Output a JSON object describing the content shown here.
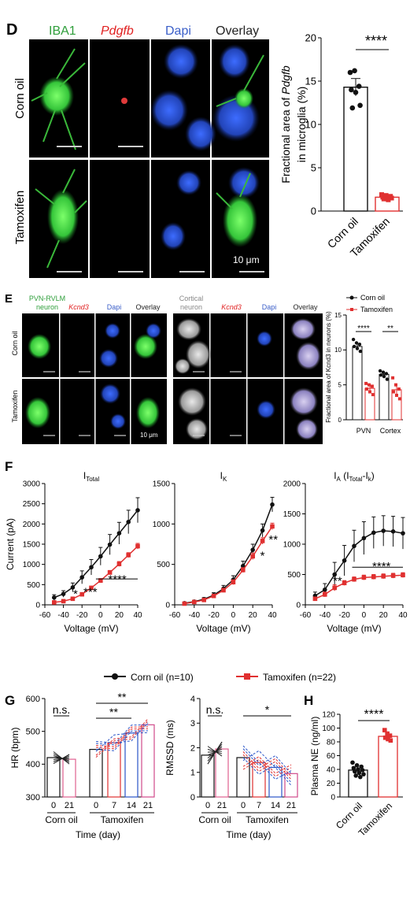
{
  "panels": {
    "D": {
      "label": "D",
      "columns": [
        "IBA1",
        "Pdgfb",
        "Dapi",
        "Overlay"
      ],
      "column_colors": [
        "#2e9e3a",
        "#e02020",
        "#3a5ec8",
        "#222222"
      ],
      "rows": [
        "Corn oil",
        "Tamoxifen"
      ],
      "scale": "10 μm",
      "significance": "****"
    },
    "E": {
      "label": "E",
      "left_header": [
        "PVN-RVLM",
        "neuron"
      ],
      "right_header": [
        "Cortical",
        "neuron"
      ],
      "columns": [
        "Kcnd3",
        "Dapi",
        "Overlay"
      ],
      "rows": [
        "Corn oil",
        "Tamoxifen"
      ],
      "scale": "10 μm",
      "legend": [
        "Corn oil",
        "Tamoxifen"
      ]
    },
    "F": {
      "label": "F",
      "legend": [
        "Corn oil (n=10)",
        "Tamoxifen (n=22)"
      ]
    },
    "G": {
      "label": "G"
    },
    "H": {
      "label": "H"
    }
  },
  "colors": {
    "corn": "#111111",
    "tam": "#e03030",
    "tam_bar": "#c8457a",
    "blue": "#2a55c8"
  },
  "chart_data": [
    {
      "id": "D",
      "type": "bar",
      "categories": [
        "Corn oil",
        "Tamoxifen"
      ],
      "values": [
        14.3,
        1.6
      ],
      "errors": [
        1.0,
        0.15
      ],
      "points": [
        [
          16,
          16.2,
          14.4,
          14.0,
          13.7,
          12.2,
          11.9
        ],
        [
          1.9,
          1.8,
          1.7,
          1.6,
          1.5,
          1.5,
          1.4,
          1.3
        ]
      ],
      "ylabel": "Fractional area of Pdgfb in microglia (%)",
      "ylim": [
        0,
        20
      ],
      "yticks": [
        0,
        5,
        10,
        15,
        20
      ],
      "significance": "****"
    },
    {
      "id": "E",
      "type": "bar",
      "categories": [
        "PVN",
        "Cortex"
      ],
      "series": [
        {
          "name": "Corn oil",
          "values": [
            10.5,
            6.5
          ],
          "errors": [
            0.4,
            0.4
          ],
          "points": [
            [
              11.5,
              11,
              10.8,
              10.5,
              10.2,
              9.8
            ],
            [
              7.0,
              6.8,
              6.6,
              6.4,
              6.2,
              5.8
            ]
          ]
        },
        {
          "name": "Tamoxifen",
          "values": [
            4.5,
            4.3
          ],
          "errors": [
            0.3,
            0.6
          ],
          "points": [
            [
              5.2,
              5.0,
              4.8,
              4.4,
              4.0,
              3.6
            ],
            [
              6.0,
              5.0,
              4.4,
              4.0,
              3.5,
              3.0
            ]
          ]
        }
      ],
      "ylabel": "Fractional area of Kcnd3 in neurons (%)",
      "ylim": [
        0,
        15
      ],
      "yticks": [
        0,
        5,
        10,
        15
      ],
      "significance": [
        "****",
        "**"
      ]
    },
    {
      "id": "F1",
      "type": "line",
      "title": "I",
      "title_sub": "Total",
      "x": [
        -50,
        -40,
        -30,
        -20,
        -10,
        0,
        10,
        20,
        30,
        40
      ],
      "series": [
        {
          "name": "Corn oil",
          "values": [
            180,
            270,
            430,
            680,
            930,
            1200,
            1490,
            1770,
            2050,
            2340
          ],
          "errors": [
            70,
            80,
            110,
            160,
            190,
            220,
            250,
            270,
            290,
            310
          ]
        },
        {
          "name": "Tamoxifen",
          "values": [
            60,
            90,
            150,
            260,
            420,
            600,
            800,
            1010,
            1230,
            1450
          ],
          "errors": [
            30,
            30,
            30,
            40,
            40,
            50,
            50,
            60,
            60,
            70
          ]
        }
      ],
      "xlabel": "Voltage (mV)",
      "ylabel": "Current (pA)",
      "xlim": [
        -60,
        40
      ],
      "ylim": [
        0,
        3000
      ],
      "xticks": [
        -60,
        -40,
        -20,
        0,
        20,
        40
      ],
      "yticks": [
        0,
        500,
        1000,
        1500,
        2000,
        2500,
        3000
      ],
      "annotations": [
        "*",
        "***",
        "****"
      ]
    },
    {
      "id": "F2",
      "type": "line",
      "title": "I",
      "title_sub": "K",
      "x": [
        -50,
        -40,
        -30,
        -20,
        -10,
        0,
        10,
        20,
        30,
        40
      ],
      "series": [
        {
          "name": "Corn oil",
          "values": [
            20,
            40,
            70,
            120,
            200,
            310,
            480,
            680,
            920,
            1240
          ],
          "errors": [
            10,
            15,
            20,
            30,
            40,
            50,
            60,
            70,
            80,
            90
          ]
        },
        {
          "name": "Tamoxifen",
          "values": [
            15,
            35,
            60,
            110,
            180,
            280,
            430,
            600,
            790,
            970
          ],
          "errors": [
            10,
            10,
            15,
            20,
            25,
            30,
            30,
            40,
            40,
            40
          ]
        }
      ],
      "xlabel": "Voltage (mV)",
      "xlim": [
        -60,
        40
      ],
      "ylim": [
        0,
        1500
      ],
      "xticks": [
        -60,
        -40,
        -20,
        0,
        20,
        40
      ],
      "yticks": [
        0,
        500,
        1000,
        1500
      ],
      "annotations": [
        "*",
        "**"
      ]
    },
    {
      "id": "F3",
      "type": "line",
      "title": "I",
      "title_sub": "A",
      "title_suffix": "(I",
      "title_suffix_sub1": "Total",
      "title_suffix_mid": "-I",
      "title_suffix_sub2": "k",
      "title_suffix_end": ")",
      "x": [
        -50,
        -40,
        -30,
        -20,
        -10,
        0,
        10,
        20,
        30,
        40
      ],
      "series": [
        {
          "name": "Corn oil",
          "values": [
            150,
            250,
            500,
            730,
            970,
            1100,
            1190,
            1220,
            1210,
            1180
          ],
          "errors": [
            60,
            100,
            200,
            250,
            260,
            270,
            260,
            250,
            250,
            260
          ]
        },
        {
          "name": "Tamoxifen",
          "values": [
            100,
            170,
            280,
            360,
            420,
            450,
            460,
            470,
            480,
            490
          ],
          "errors": [
            30,
            40,
            50,
            40,
            40,
            40,
            40,
            40,
            40,
            40
          ]
        }
      ],
      "xlabel": "Voltage (mV)",
      "xlim": [
        -60,
        40
      ],
      "ylim": [
        0,
        2000
      ],
      "xticks": [
        -60,
        -40,
        -20,
        0,
        20,
        40
      ],
      "yticks": [
        0,
        500,
        1000,
        1500,
        2000
      ],
      "annotations": [
        "**",
        "****"
      ]
    },
    {
      "id": "G1",
      "type": "bar",
      "groups": [
        "Corn oil",
        "Tamoxifen"
      ],
      "categories": [
        "0",
        "21",
        "0",
        "7",
        "14",
        "21"
      ],
      "values": [
        420,
        415,
        445,
        465,
        495,
        520
      ],
      "ylabel": "HR (bpm)",
      "xlabel": "Time (day)",
      "ylim": [
        300,
        600
      ],
      "yticks": [
        300,
        400,
        500,
        600
      ],
      "significance": [
        "n.s.",
        "**",
        "**"
      ]
    },
    {
      "id": "G2",
      "type": "bar",
      "groups": [
        "Corn oil",
        "Tamoxifen"
      ],
      "categories": [
        "0",
        "21",
        "0",
        "7",
        "14",
        "21"
      ],
      "values": [
        1.7,
        1.95,
        1.6,
        1.4,
        1.2,
        0.95
      ],
      "ylabel": "RMSSD (ms)",
      "xlabel": "Time (day)",
      "ylim": [
        0,
        4
      ],
      "yticks": [
        0,
        1,
        2,
        3,
        4
      ],
      "significance": [
        "n.s.",
        "*"
      ]
    },
    {
      "id": "H",
      "type": "bar",
      "categories": [
        "Corn oil",
        "Tamoxifen"
      ],
      "values": [
        39,
        88
      ],
      "errors": [
        3,
        3
      ],
      "points": [
        [
          50,
          46,
          44,
          42,
          40,
          39,
          37,
          35,
          33,
          31,
          29
        ],
        [
          97,
          92,
          89,
          86,
          84,
          82
        ]
      ],
      "ylabel": "Plasma NE (ng/ml)",
      "ylim": [
        0,
        120
      ],
      "yticks": [
        0,
        20,
        40,
        60,
        80,
        100,
        120
      ],
      "significance": "****"
    }
  ]
}
